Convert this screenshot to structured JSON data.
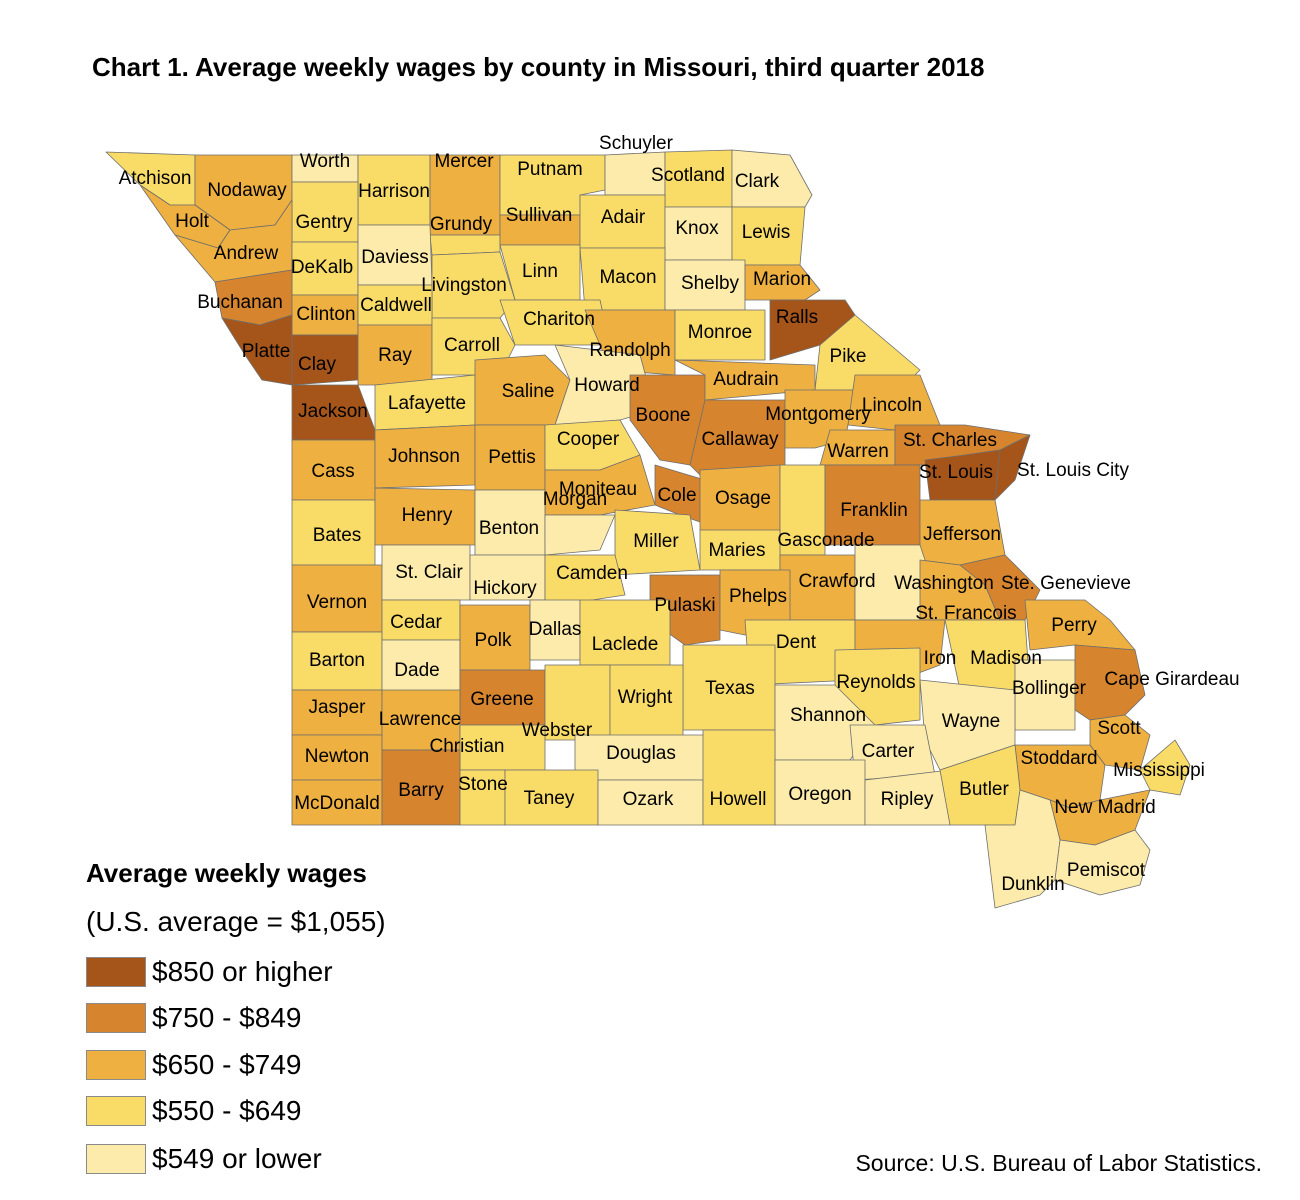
{
  "title": "Chart 1. Average weekly wages by county in Missouri, third quarter 2018",
  "legend": {
    "title": "Average weekly wages",
    "subtitle": "(U.S. average = $1,055)",
    "items": [
      {
        "label": "$850 or higher",
        "color": "#a6551a"
      },
      {
        "label": "$750 - $849",
        "color": "#d6852e"
      },
      {
        "label": "$650 - $749",
        "color": "#eeb040"
      },
      {
        "label": "$550 - $649",
        "color": "#f9dc68"
      },
      {
        "label": "$549 or lower",
        "color": "#fcebaa"
      }
    ]
  },
  "source": "Source: U.S. Bureau of Labor Statistics.",
  "counties": [
    {
      "name": "Atchison",
      "class": 3
    },
    {
      "name": "Nodaway",
      "class": 2
    },
    {
      "name": "Worth",
      "class": 4
    },
    {
      "name": "Harrison",
      "class": 3
    },
    {
      "name": "Mercer",
      "class": 2
    },
    {
      "name": "Putnam",
      "class": 3
    },
    {
      "name": "Schuyler",
      "class": 4
    },
    {
      "name": "Scotland",
      "class": 3
    },
    {
      "name": "Clark",
      "class": 4
    },
    {
      "name": "Holt",
      "class": 2
    },
    {
      "name": "Gentry",
      "class": 3
    },
    {
      "name": "Grundy",
      "class": 3
    },
    {
      "name": "Sullivan",
      "class": 2
    },
    {
      "name": "Adair",
      "class": 3
    },
    {
      "name": "Knox",
      "class": 4
    },
    {
      "name": "Lewis",
      "class": 3
    },
    {
      "name": "Andrew",
      "class": 2
    },
    {
      "name": "DeKalb",
      "class": 3
    },
    {
      "name": "Daviess",
      "class": 4
    },
    {
      "name": "Livingston",
      "class": 3
    },
    {
      "name": "Linn",
      "class": 3
    },
    {
      "name": "Macon",
      "class": 3
    },
    {
      "name": "Shelby",
      "class": 4
    },
    {
      "name": "Marion",
      "class": 2
    },
    {
      "name": "Buchanan",
      "class": 1
    },
    {
      "name": "Clinton",
      "class": 2
    },
    {
      "name": "Caldwell",
      "class": 3
    },
    {
      "name": "Ralls",
      "class": 0
    },
    {
      "name": "Platte",
      "class": 0
    },
    {
      "name": "Clay",
      "class": 0
    },
    {
      "name": "Ray",
      "class": 2
    },
    {
      "name": "Carroll",
      "class": 3
    },
    {
      "name": "Chariton",
      "class": 3
    },
    {
      "name": "Randolph",
      "class": 2
    },
    {
      "name": "Monroe",
      "class": 3
    },
    {
      "name": "Pike",
      "class": 3
    },
    {
      "name": "Jackson",
      "class": 0
    },
    {
      "name": "Lafayette",
      "class": 3
    },
    {
      "name": "Saline",
      "class": 2
    },
    {
      "name": "Howard",
      "class": 4
    },
    {
      "name": "Boone",
      "class": 1
    },
    {
      "name": "Audrain",
      "class": 2
    },
    {
      "name": "Callaway",
      "class": 1
    },
    {
      "name": "Montgomery",
      "class": 2
    },
    {
      "name": "Lincoln",
      "class": 2
    },
    {
      "name": "Warren",
      "class": 2
    },
    {
      "name": "St. Charles",
      "class": 1
    },
    {
      "name": "St. Louis",
      "class": 0
    },
    {
      "name": "St. Louis City",
      "class": 0
    },
    {
      "name": "Cass",
      "class": 2
    },
    {
      "name": "Johnson",
      "class": 2
    },
    {
      "name": "Pettis",
      "class": 2
    },
    {
      "name": "Cooper",
      "class": 3
    },
    {
      "name": "Moniteau",
      "class": 2
    },
    {
      "name": "Cole",
      "class": 1
    },
    {
      "name": "Osage",
      "class": 2
    },
    {
      "name": "Gasconade",
      "class": 3
    },
    {
      "name": "Franklin",
      "class": 1
    },
    {
      "name": "Jefferson",
      "class": 2
    },
    {
      "name": "Bates",
      "class": 3
    },
    {
      "name": "Henry",
      "class": 2
    },
    {
      "name": "Benton",
      "class": 4
    },
    {
      "name": "Morgan",
      "class": 4
    },
    {
      "name": "Miller",
      "class": 3
    },
    {
      "name": "Maries",
      "class": 3
    },
    {
      "name": "Crawford",
      "class": 2
    },
    {
      "name": "Washington",
      "class": 4
    },
    {
      "name": "St. Francois",
      "class": 2
    },
    {
      "name": "Ste. Genevieve",
      "class": 1
    },
    {
      "name": "Vernon",
      "class": 2
    },
    {
      "name": "St. Clair",
      "class": 4
    },
    {
      "name": "Hickory",
      "class": 4
    },
    {
      "name": "Camden",
      "class": 3
    },
    {
      "name": "Pulaski",
      "class": 1
    },
    {
      "name": "Phelps",
      "class": 2
    },
    {
      "name": "Dent",
      "class": 3
    },
    {
      "name": "Iron",
      "class": 2
    },
    {
      "name": "Madison",
      "class": 3
    },
    {
      "name": "Perry",
      "class": 2
    },
    {
      "name": "Barton",
      "class": 3
    },
    {
      "name": "Cedar",
      "class": 3
    },
    {
      "name": "Dade",
      "class": 4
    },
    {
      "name": "Polk",
      "class": 2
    },
    {
      "name": "Dallas",
      "class": 4
    },
    {
      "name": "Laclede",
      "class": 3
    },
    {
      "name": "Texas",
      "class": 3
    },
    {
      "name": "Reynolds",
      "class": 3
    },
    {
      "name": "Bollinger",
      "class": 4
    },
    {
      "name": "Cape Girardeau",
      "class": 1
    },
    {
      "name": "Jasper",
      "class": 2
    },
    {
      "name": "Greene",
      "class": 1
    },
    {
      "name": "Webster",
      "class": 3
    },
    {
      "name": "Wright",
      "class": 3
    },
    {
      "name": "Shannon",
      "class": 4
    },
    {
      "name": "Wayne",
      "class": 4
    },
    {
      "name": "Scott",
      "class": 2
    },
    {
      "name": "Newton",
      "class": 2
    },
    {
      "name": "Lawrence",
      "class": 2
    },
    {
      "name": "Christian",
      "class": 3
    },
    {
      "name": "Douglas",
      "class": 4
    },
    {
      "name": "Carter",
      "class": 4
    },
    {
      "name": "Stoddard",
      "class": 2
    },
    {
      "name": "Mississippi",
      "class": 3
    },
    {
      "name": "McDonald",
      "class": 2
    },
    {
      "name": "Barry",
      "class": 1
    },
    {
      "name": "Stone",
      "class": 3
    },
    {
      "name": "Taney",
      "class": 3
    },
    {
      "name": "Ozark",
      "class": 4
    },
    {
      "name": "Howell",
      "class": 3
    },
    {
      "name": "Oregon",
      "class": 4
    },
    {
      "name": "Ripley",
      "class": 4
    },
    {
      "name": "Butler",
      "class": 3
    },
    {
      "name": "New Madrid",
      "class": 2
    },
    {
      "name": "Dunklin",
      "class": 4
    },
    {
      "name": "Pemiscot",
      "class": 4
    }
  ]
}
